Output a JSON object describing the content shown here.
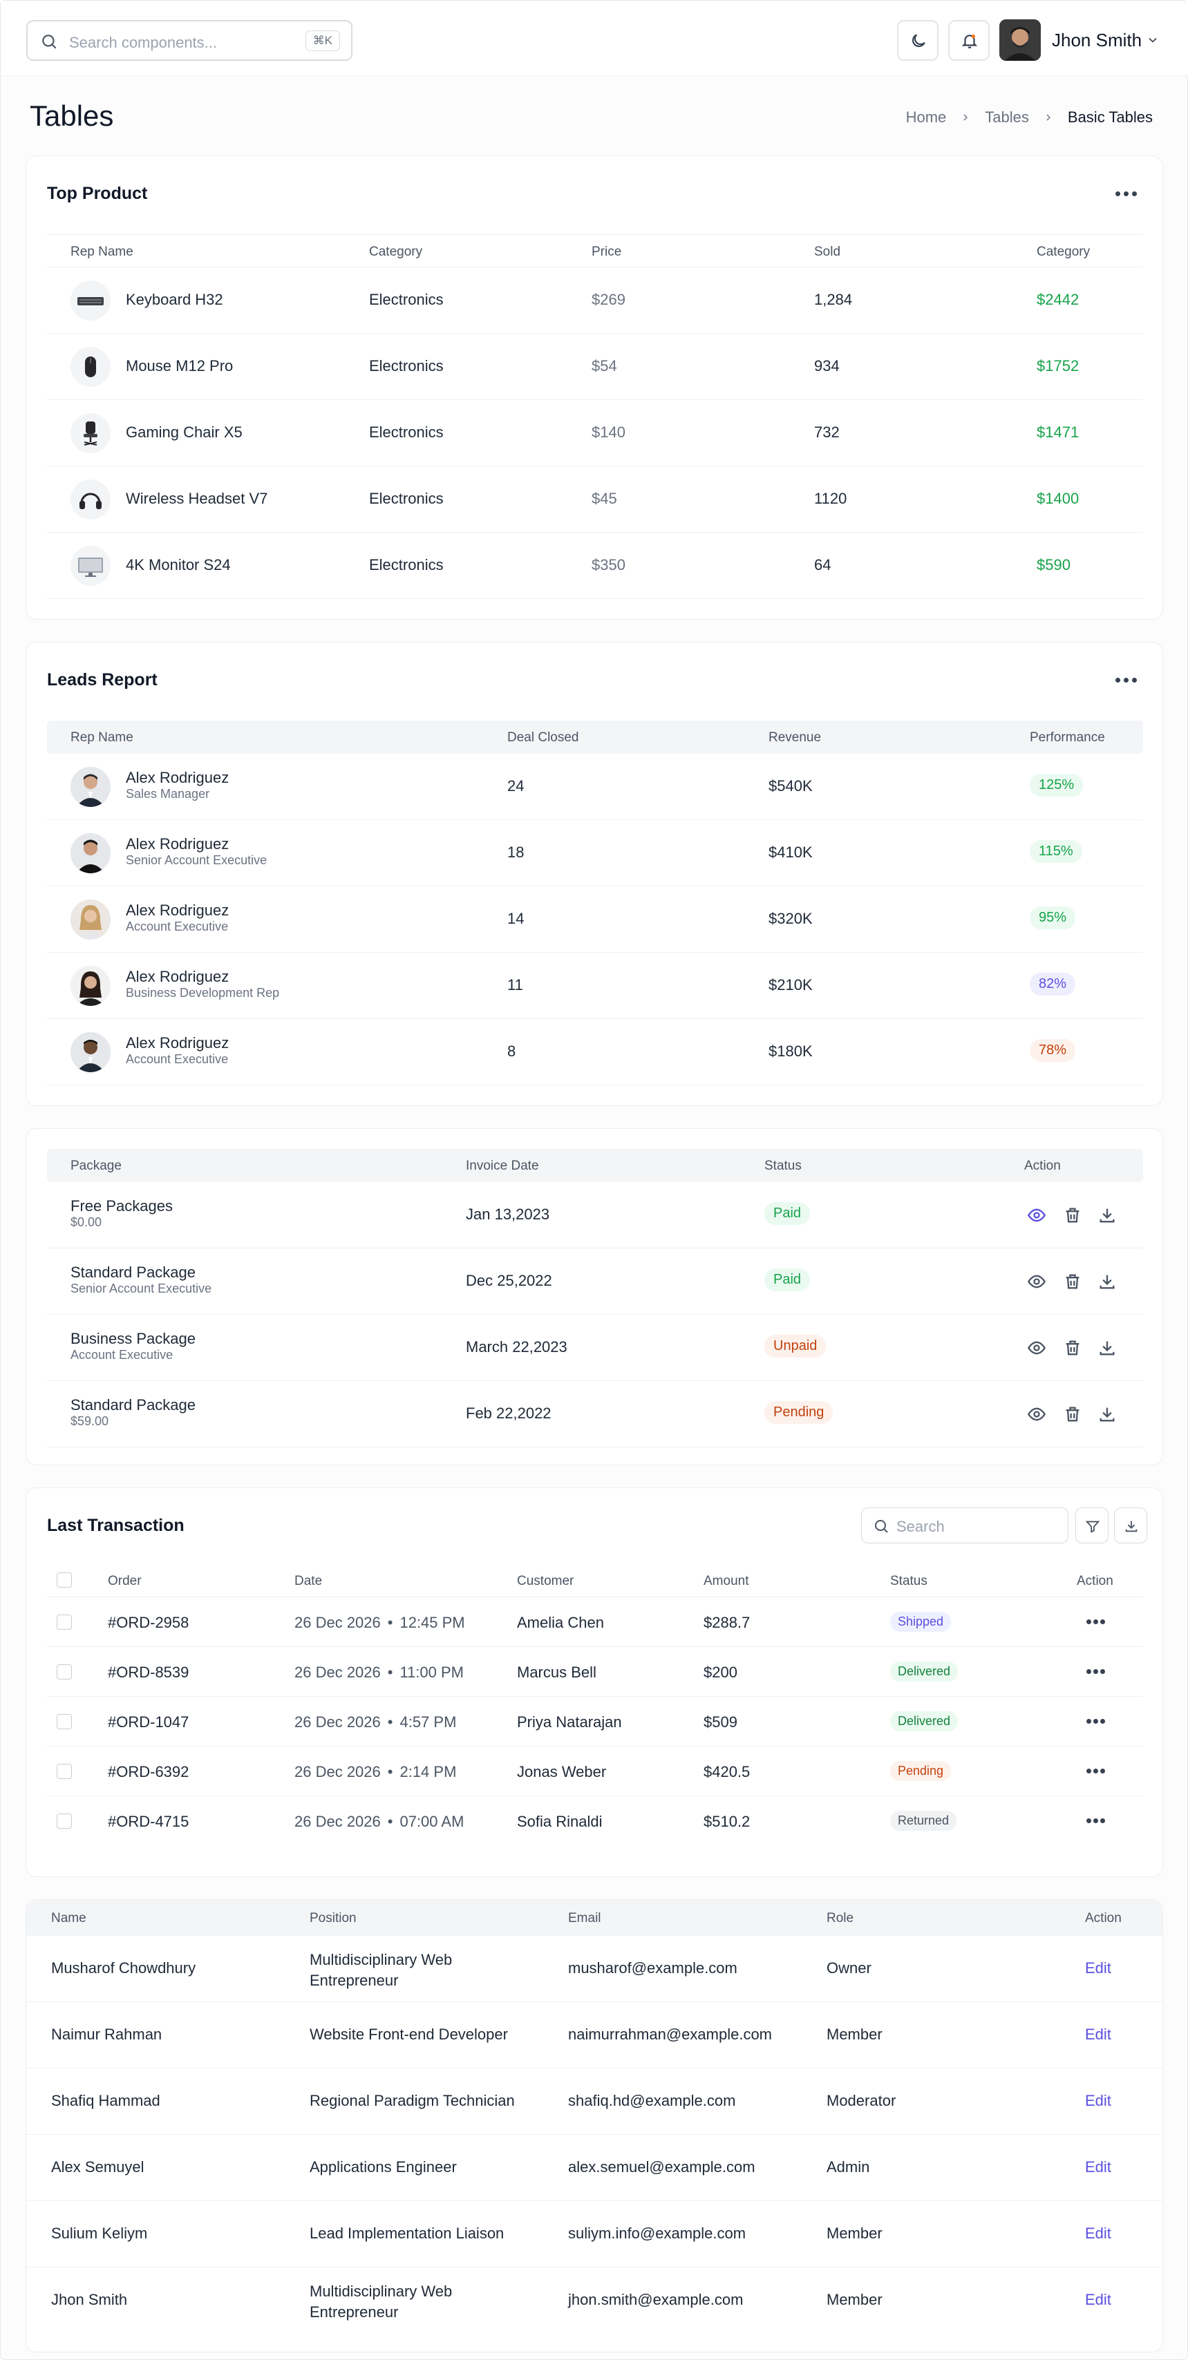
{
  "header": {
    "search_placeholder": "Search components...",
    "search_shortcut": "⌘K",
    "user_name": "Jhon Smith"
  },
  "page": {
    "title": "Tables",
    "breadcrumb": [
      "Home",
      "Tables",
      "Basic Tables"
    ]
  },
  "top_product": {
    "title": "Top Product",
    "columns": [
      "Rep Name",
      "Category",
      "Price",
      "Sold",
      "Category"
    ],
    "rows": [
      {
        "name": "Keyboard H32",
        "category": "Electronics",
        "price": "$269",
        "sold": "1,284",
        "total": "$2442",
        "icon": "keyboard-icon"
      },
      {
        "name": "Mouse M12 Pro",
        "category": "Electronics",
        "price": "$54",
        "sold": "934",
        "total": "$1752",
        "icon": "mouse-icon"
      },
      {
        "name": "Gaming Chair X5",
        "category": "Electronics",
        "price": "$140",
        "sold": "732",
        "total": "$1471",
        "icon": "chair-icon"
      },
      {
        "name": "Wireless Headset V7",
        "category": "Electronics",
        "price": "$45",
        "sold": "1120",
        "total": "$1400",
        "icon": "headset-icon"
      },
      {
        "name": "4K Monitor S24",
        "category": "Electronics",
        "price": "$350",
        "sold": "64",
        "total": "$590",
        "icon": "monitor-icon"
      }
    ]
  },
  "leads": {
    "title": "Leads Report",
    "columns": [
      "Rep Name",
      "Deal Closed",
      "Revenue",
      "Performance"
    ],
    "rows": [
      {
        "name": "Alex Rodriguez",
        "role": "Sales Manager",
        "deals": "24",
        "revenue": "$540K",
        "perf": "125%",
        "tone": "green"
      },
      {
        "name": "Alex Rodriguez",
        "role": "Senior Account Executive",
        "deals": "18",
        "revenue": "$410K",
        "perf": "115%",
        "tone": "green"
      },
      {
        "name": "Alex Rodriguez",
        "role": "Account Executive",
        "deals": "14",
        "revenue": "$320K",
        "perf": "95%",
        "tone": "green"
      },
      {
        "name": "Alex Rodriguez",
        "role": "Business Development Rep",
        "deals": "11",
        "revenue": "$210K",
        "perf": "82%",
        "tone": "purple"
      },
      {
        "name": "Alex Rodriguez",
        "role": "Account Executive",
        "deals": "8",
        "revenue": "$180K",
        "perf": "78%",
        "tone": "orange"
      }
    ]
  },
  "invoices": {
    "columns": [
      "Package",
      "Invoice Date",
      "Status",
      "Action"
    ],
    "rows": [
      {
        "package": "Free Packages",
        "sub": "$0.00",
        "date": "Jan 13,2023",
        "status": "Paid",
        "tone": "green"
      },
      {
        "package": "Standard Package",
        "sub": "Senior Account Executive",
        "date": "Dec 25,2022",
        "status": "Paid",
        "tone": "green"
      },
      {
        "package": "Business Package",
        "sub": "Account Executive",
        "date": "March 22,2023",
        "status": "Unpaid",
        "tone": "orange"
      },
      {
        "package": "Standard Package",
        "sub": "$59.00",
        "date": "Feb 22,2022",
        "status": "Pending",
        "tone": "orange"
      }
    ]
  },
  "transactions": {
    "title": "Last Transaction",
    "search_placeholder": "Search",
    "columns": [
      "Order",
      "Date",
      "Customer",
      "Amount",
      "Status",
      "Action"
    ],
    "rows": [
      {
        "order": "#ORD-2958",
        "date": "26 Dec 2026",
        "time": "12:45 PM",
        "customer": "Amelia Chen",
        "amount": "$288.7",
        "status": "Shipped",
        "tone": "blue"
      },
      {
        "order": "#ORD-8539",
        "date": "26 Dec 2026",
        "time": "11:00 PM",
        "customer": "Marcus Bell",
        "amount": "$200",
        "status": "Delivered",
        "tone": "green"
      },
      {
        "order": "#ORD-1047",
        "date": "26 Dec 2026",
        "time": "4:57 PM",
        "customer": "Priya Natarajan",
        "amount": "$509",
        "status": "Delivered",
        "tone": "green"
      },
      {
        "order": "#ORD-6392",
        "date": "26 Dec 2026",
        "time": "2:14 PM",
        "customer": "Jonas Weber",
        "amount": "$420.5",
        "status": "Pending",
        "tone": "orange"
      },
      {
        "order": "#ORD-4715",
        "date": "26 Dec 2026",
        "time": "07:00 AM",
        "customer": "Sofia Rinaldi",
        "amount": "$510.2",
        "status": "Returned",
        "tone": "gray"
      }
    ]
  },
  "users": {
    "columns": [
      "Name",
      "Position",
      "Email",
      "Role",
      "Action"
    ],
    "edit_label": "Edit",
    "rows": [
      {
        "name": "Musharof Chowdhury",
        "position": [
          "Multidisciplinary Web",
          "Entrepreneur"
        ],
        "email": "musharof@example.com",
        "role": "Owner"
      },
      {
        "name": "Naimur Rahman",
        "position": [
          "Website Front-end Developer"
        ],
        "email": "naimurrahman@example.com",
        "role": "Member"
      },
      {
        "name": "Shafiq Hammad",
        "position": [
          "Regional Paradigm Technician"
        ],
        "email": "shafiq.hd@example.com",
        "role": "Moderator"
      },
      {
        "name": "Alex Semuyel",
        "position": [
          "Applications Engineer"
        ],
        "email": "alex.semuel@example.com",
        "role": "Admin"
      },
      {
        "name": "Sulium Keliym",
        "position": [
          "Lead Implementation Liaison"
        ],
        "email": "suliym.info@example.com",
        "role": "Member"
      },
      {
        "name": "Jhon Smith",
        "position": [
          "Multidisciplinary Web",
          "Entrepreneur"
        ],
        "email": "jhon.smith@example.com",
        "role": "Member"
      }
    ]
  },
  "colors": {
    "accent": "#5b4fe0",
    "success": "#16a34a",
    "warning": "#c2410c"
  }
}
